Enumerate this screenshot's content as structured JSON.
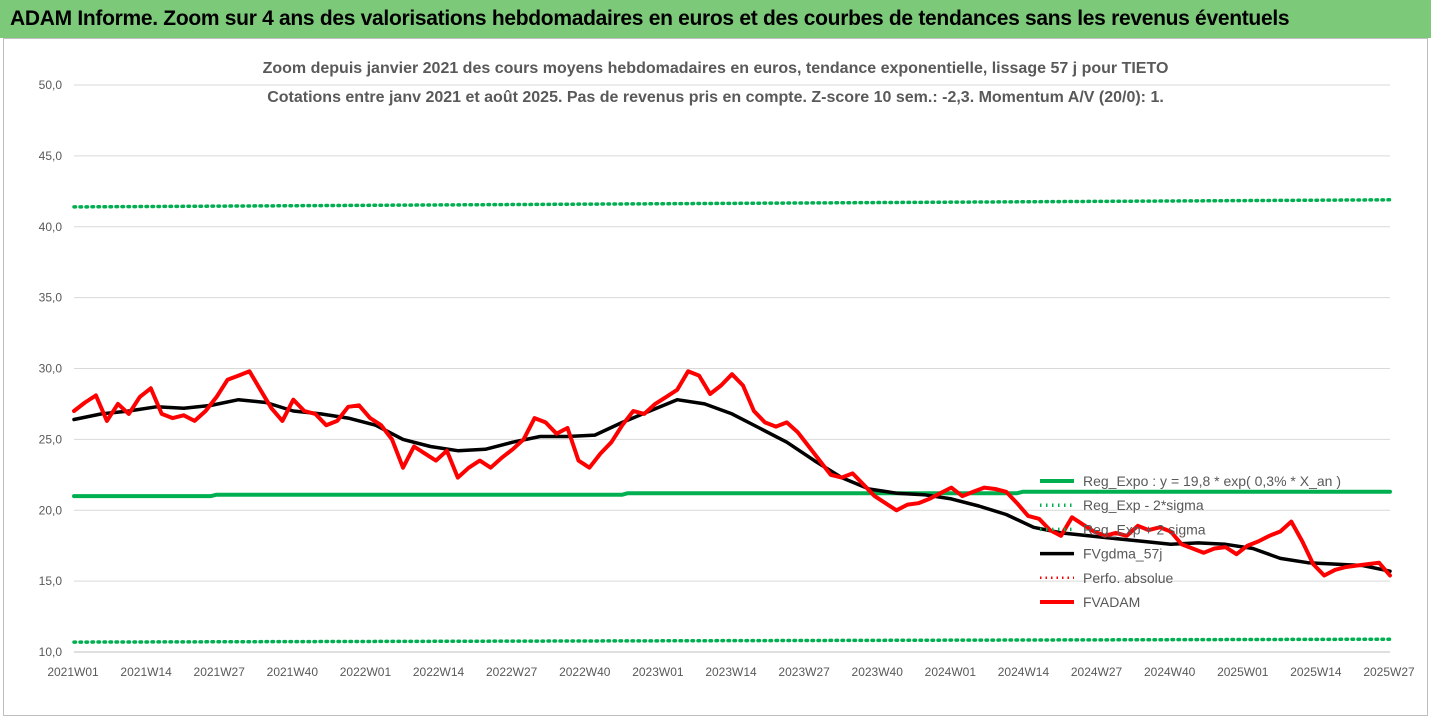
{
  "banner": {
    "title": "ADAM Informe. Zoom sur 4 ans des valorisations hebdomadaires en euros et des courbes de tendances sans les revenus éventuels"
  },
  "colors": {
    "banner_bg": "#7cc97a",
    "regression": "#00b050",
    "moving_average": "#000000",
    "price": "#ff0000",
    "grid": "#d9d9d9"
  },
  "chart_data": {
    "type": "line",
    "title": "Zoom depuis janvier 2021 des cours moyens hebdomadaires en euros, tendance exponentielle, lissage 57 j pour TIETO",
    "subtitle": "Cotations entre janv 2021 et août 2025. Pas de revenus pris en compte. Z-score 10 sem.: -2,3. Momentum A/V (20/0): 1.",
    "xlabel": "",
    "ylabel": "",
    "ylim": [
      10,
      50
    ],
    "y_ticks": [
      "10,0",
      "15,0",
      "20,0",
      "25,0",
      "30,0",
      "35,0",
      "40,0",
      "45,0",
      "50,0"
    ],
    "x_range": [
      0,
      240
    ],
    "x_tick_labels": [
      "2021W01",
      "2021W14",
      "2021W27",
      "2021W40",
      "2022W01",
      "2022W14",
      "2022W27",
      "2022W40",
      "2023W01",
      "2023W14",
      "2023W27",
      "2023W40",
      "2024W01",
      "2024W14",
      "2024W27",
      "2024W40",
      "2025W01",
      "2025W14",
      "2025W27"
    ],
    "grid": true,
    "legend_position": "right",
    "series": [
      {
        "name": "Reg_Expo : y = 19,8 * exp( 0,3% * X_an )",
        "color": "#00b050",
        "style": "solid",
        "x": [
          0,
          25,
          26,
          100,
          101,
          172,
          173,
          240
        ],
        "y": [
          21.0,
          21.0,
          21.1,
          21.1,
          21.2,
          21.2,
          21.3,
          21.3
        ]
      },
      {
        "name": "Reg_Exp - 2*sigma",
        "color": "#00b050",
        "style": "dotted",
        "x": [
          0,
          240
        ],
        "y": [
          10.7,
          10.9
        ]
      },
      {
        "name": "Reg_Exp + 2 sigma",
        "color": "#00b050",
        "style": "dotted",
        "x": [
          0,
          240
        ],
        "y": [
          41.4,
          41.9
        ]
      },
      {
        "name": "FVgdma_57j",
        "color": "#000000",
        "style": "solid",
        "x": [
          0,
          5,
          10,
          15,
          20,
          25,
          30,
          35,
          40,
          45,
          50,
          55,
          60,
          65,
          70,
          75,
          80,
          85,
          90,
          95,
          100,
          105,
          110,
          115,
          120,
          125,
          130,
          135,
          140,
          145,
          150,
          155,
          160,
          165,
          170,
          175,
          180,
          185,
          190,
          195,
          200,
          205,
          210,
          215,
          220,
          225,
          230,
          235,
          240
        ],
        "y": [
          26.4,
          26.8,
          27.0,
          27.3,
          27.2,
          27.4,
          27.8,
          27.6,
          27.0,
          26.8,
          26.5,
          26.0,
          25.0,
          24.5,
          24.2,
          24.3,
          24.8,
          25.2,
          25.2,
          25.3,
          26.2,
          27.0,
          27.8,
          27.5,
          26.8,
          25.8,
          24.8,
          23.5,
          22.3,
          21.5,
          21.2,
          21.1,
          20.8,
          20.3,
          19.7,
          18.8,
          18.4,
          18.2,
          18.0,
          17.8,
          17.6,
          17.7,
          17.6,
          17.3,
          16.6,
          16.3,
          16.2,
          16.1,
          15.7
        ]
      },
      {
        "name": "Perfo. absolue",
        "color": "#ff0000",
        "style": "dotted",
        "x": [],
        "y": []
      },
      {
        "name": "FVADAM",
        "color": "#ff0000",
        "style": "solid",
        "x": [
          0,
          2,
          4,
          6,
          8,
          10,
          12,
          14,
          16,
          18,
          20,
          22,
          24,
          26,
          28,
          30,
          32,
          34,
          36,
          38,
          40,
          42,
          44,
          46,
          48,
          50,
          52,
          54,
          56,
          58,
          60,
          62,
          64,
          66,
          68,
          70,
          72,
          74,
          76,
          78,
          80,
          82,
          84,
          86,
          88,
          90,
          92,
          94,
          96,
          98,
          100,
          102,
          104,
          106,
          108,
          110,
          112,
          114,
          116,
          118,
          120,
          122,
          124,
          126,
          128,
          130,
          132,
          134,
          136,
          138,
          140,
          142,
          144,
          146,
          148,
          150,
          152,
          154,
          156,
          158,
          160,
          162,
          164,
          166,
          168,
          170,
          172,
          174,
          176,
          178,
          180,
          182,
          184,
          186,
          188,
          190,
          192,
          194,
          196,
          198,
          200,
          202,
          204,
          206,
          208,
          210,
          212,
          214,
          216,
          218,
          220,
          222,
          224,
          226,
          228,
          230,
          232,
          234,
          236,
          238,
          240
        ],
        "y": [
          27.0,
          27.6,
          28.1,
          26.3,
          27.5,
          26.8,
          28.0,
          28.6,
          26.8,
          26.5,
          26.7,
          26.3,
          27.0,
          28.0,
          29.2,
          29.5,
          29.8,
          28.5,
          27.2,
          26.3,
          27.8,
          27.0,
          26.8,
          26.0,
          26.3,
          27.3,
          27.4,
          26.5,
          26.0,
          25.0,
          23.0,
          24.5,
          24.0,
          23.5,
          24.2,
          22.3,
          23.0,
          23.5,
          23.0,
          23.7,
          24.3,
          25.0,
          26.5,
          26.2,
          25.4,
          25.8,
          23.5,
          23.0,
          24.0,
          24.8,
          26.0,
          27.0,
          26.8,
          27.5,
          28.0,
          28.5,
          29.8,
          29.5,
          28.2,
          28.8,
          29.6,
          28.8,
          27.0,
          26.2,
          25.9,
          26.2,
          25.5,
          24.5,
          23.5,
          22.5,
          22.3,
          22.6,
          21.8,
          21.0,
          20.5,
          20.0,
          20.4,
          20.5,
          20.8,
          21.2,
          21.6,
          21.0,
          21.3,
          21.6,
          21.5,
          21.3,
          20.5,
          19.6,
          19.4,
          18.6,
          18.2,
          19.5,
          19.0,
          18.5,
          18.2,
          18.4,
          18.2,
          18.9,
          18.6,
          18.8,
          18.5,
          17.6,
          17.3,
          17.0,
          17.3,
          17.4,
          16.9,
          17.5,
          17.8,
          18.2,
          18.5,
          19.2,
          17.8,
          16.2,
          15.4,
          15.8,
          16.0,
          16.1,
          16.2,
          16.3,
          15.4
        ]
      }
    ]
  }
}
